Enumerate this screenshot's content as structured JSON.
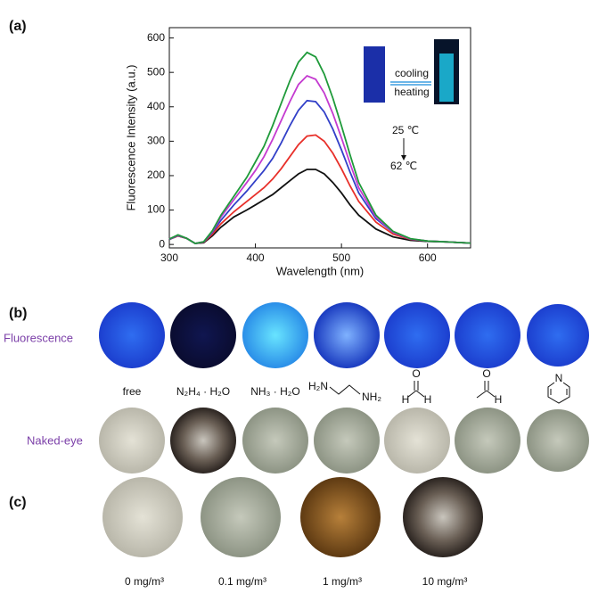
{
  "chart_data": {
    "type": "line",
    "x_label": "Wavelength (nm)",
    "y_label": "Fluorescence Intensity (a.u.)",
    "x": [
      300,
      310,
      320,
      330,
      340,
      350,
      360,
      375,
      390,
      400,
      410,
      420,
      430,
      440,
      450,
      460,
      470,
      480,
      490,
      500,
      510,
      520,
      540,
      560,
      580,
      600,
      625,
      650
    ],
    "series": [
      {
        "color": "#111111",
        "values": [
          15,
          25,
          18,
          3,
          5,
          25,
          50,
          80,
          100,
          115,
          130,
          145,
          165,
          185,
          205,
          218,
          218,
          205,
          180,
          150,
          115,
          85,
          45,
          22,
          12,
          9,
          7,
          4
        ]
      },
      {
        "color": "#e8302a",
        "values": [
          15,
          25,
          18,
          3,
          6,
          30,
          60,
          95,
          125,
          145,
          165,
          190,
          220,
          255,
          290,
          315,
          318,
          300,
          265,
          220,
          170,
          125,
          65,
          30,
          15,
          10,
          7,
          4
        ]
      },
      {
        "color": "#3240c8",
        "values": [
          15,
          26,
          18,
          3,
          7,
          35,
          70,
          115,
          155,
          185,
          215,
          250,
          295,
          345,
          390,
          418,
          415,
          385,
          335,
          275,
          210,
          150,
          75,
          35,
          16,
          10,
          7,
          4
        ]
      },
      {
        "color": "#c43ad0",
        "values": [
          16,
          27,
          18,
          3,
          8,
          38,
          80,
          130,
          180,
          215,
          255,
          305,
          360,
          415,
          465,
          490,
          480,
          440,
          380,
          310,
          235,
          165,
          80,
          36,
          16,
          10,
          7,
          4
        ]
      },
      {
        "color": "#1f9a3a",
        "values": [
          16,
          28,
          18,
          3,
          8,
          40,
          85,
          140,
          195,
          240,
          285,
          345,
          410,
          475,
          530,
          558,
          545,
          495,
          425,
          345,
          260,
          180,
          85,
          38,
          17,
          10,
          7,
          4
        ]
      }
    ],
    "xlim": [
      300,
      650
    ],
    "ylim": [
      -10,
      630
    ],
    "xticks": [
      300,
      400,
      500,
      600
    ],
    "yticks": [
      0,
      100,
      200,
      300,
      400,
      500,
      600
    ],
    "annotations": [
      "cooling",
      "heating",
      "25 ℃",
      "62 ℃"
    ]
  },
  "panel_labels": [
    "(a)",
    "(b)",
    "(c)"
  ],
  "panel_b": {
    "row_labels": [
      "Fluorescence",
      "Naked-eye"
    ],
    "samples": [
      "free",
      "N₂H₄ · H₂O",
      "NH₃ · H₂O"
    ],
    "structure_texts": [
      "H₂N",
      "NH₂",
      "O",
      "H",
      "H",
      "O",
      "H",
      "N"
    ]
  },
  "panel_c": {
    "labels": [
      "0 mg/m³",
      "0.1 mg/m³",
      "1 mg/m³",
      "10 mg/m³"
    ]
  }
}
